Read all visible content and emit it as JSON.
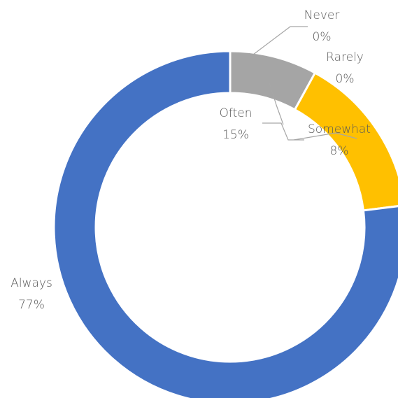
{
  "chart_data": {
    "type": "pie",
    "donut": true,
    "categories": [
      "Never",
      "Rarely",
      "Somewhat",
      "Often",
      "Always"
    ],
    "values": [
      0,
      0,
      8,
      15,
      77
    ],
    "value_labels": [
      "0%",
      "0%",
      "8%",
      "15%",
      "77%"
    ],
    "colors": [
      "#5b9bd5",
      "#ed7d31",
      "#a5a5a5",
      "#ffc000",
      "#4472c4"
    ]
  }
}
